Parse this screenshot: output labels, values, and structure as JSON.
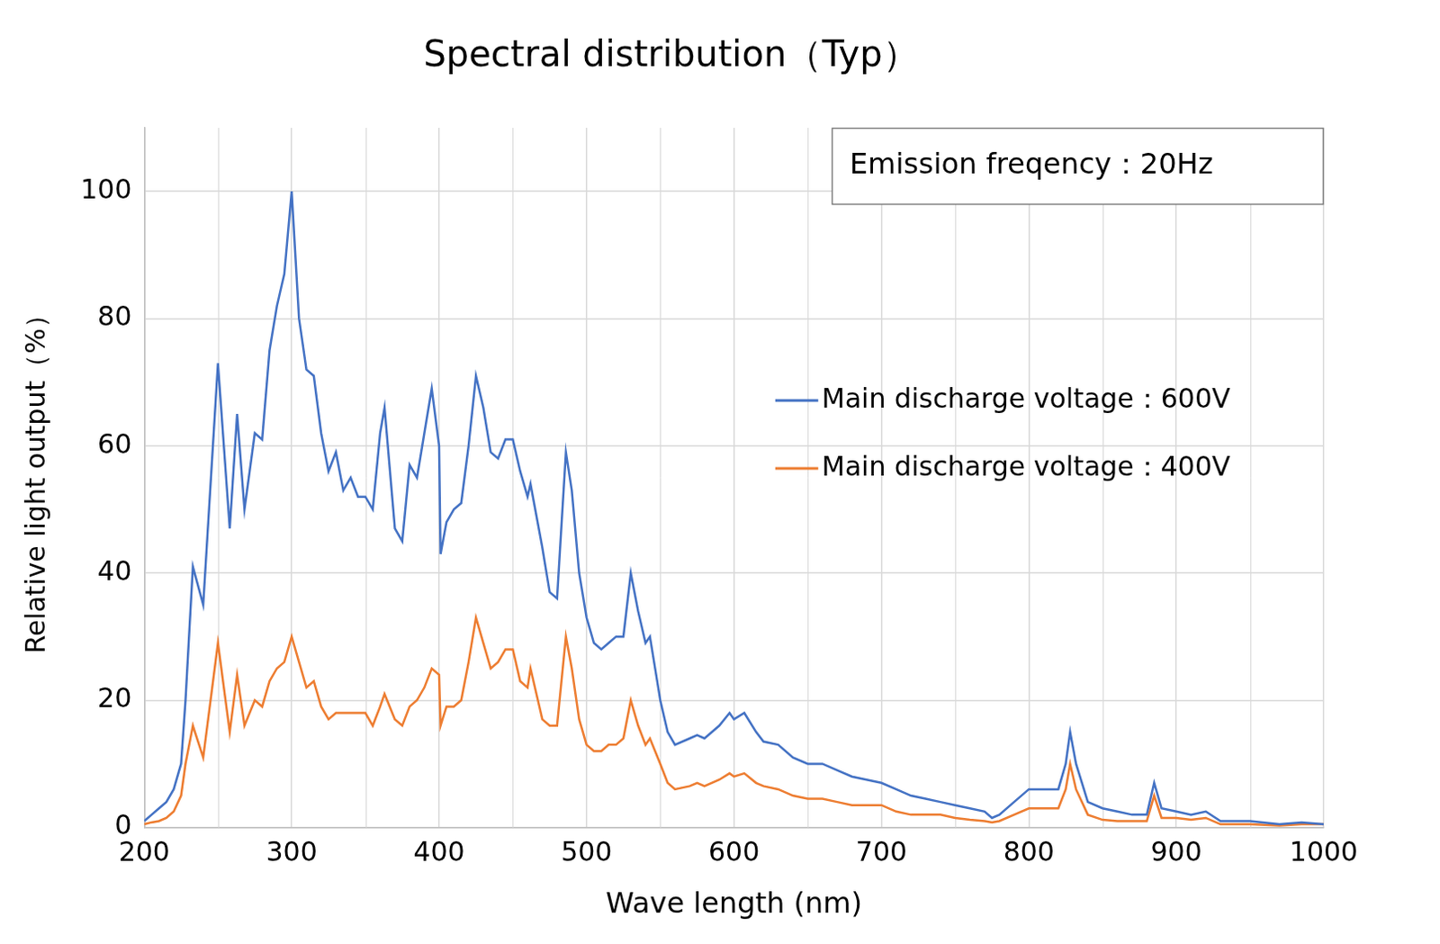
{
  "chart_data": {
    "type": "line",
    "title": "Spectral distribution（Typ）",
    "annotation": "Emission freqency：20Hz",
    "x_label": "Wave length (nm)",
    "y_label": "Relative light output（%）",
    "x": [
      200,
      205,
      210,
      215,
      220,
      225,
      228,
      233,
      240,
      250,
      258,
      263,
      268,
      275,
      280,
      285,
      290,
      295,
      300,
      305,
      310,
      315,
      320,
      325,
      330,
      335,
      340,
      345,
      350,
      355,
      360,
      363,
      370,
      375,
      380,
      385,
      390,
      395,
      400,
      401,
      405,
      410,
      415,
      420,
      425,
      430,
      435,
      440,
      445,
      450,
      455,
      460,
      462,
      470,
      475,
      480,
      486,
      490,
      495,
      500,
      505,
      510,
      515,
      520,
      525,
      530,
      535,
      540,
      543,
      550,
      555,
      560,
      570,
      575,
      580,
      590,
      597,
      600,
      607,
      615,
      620,
      630,
      640,
      650,
      660,
      670,
      680,
      690,
      700,
      710,
      720,
      730,
      740,
      750,
      760,
      770,
      775,
      780,
      790,
      800,
      810,
      820,
      825,
      828,
      832,
      840,
      850,
      860,
      870,
      880,
      885,
      890,
      900,
      910,
      920,
      930,
      950,
      970,
      985,
      1000
    ],
    "series": [
      {
        "name": "Main discharge voltage：600V",
        "color": "#4472c4",
        "values": [
          1,
          2,
          3,
          4,
          6,
          10,
          20,
          41,
          35,
          73,
          47,
          65,
          50,
          62,
          61,
          75,
          82,
          87,
          100,
          80,
          72,
          71,
          62,
          56,
          59,
          53,
          55,
          52,
          52,
          50,
          62,
          66,
          47,
          45,
          57,
          55,
          62,
          69,
          60,
          43,
          48,
          50,
          51,
          60,
          71,
          66,
          59,
          58,
          61,
          61,
          56,
          52,
          54,
          44,
          37,
          36,
          59,
          53,
          40,
          33,
          29,
          28,
          29,
          30,
          30,
          40,
          34,
          29,
          30,
          20,
          15,
          13,
          14,
          14.5,
          14,
          16,
          18,
          17,
          18,
          15,
          13.5,
          13,
          11,
          10,
          10,
          9,
          8,
          7.5,
          7,
          6,
          5,
          4.5,
          4,
          3.5,
          3,
          2.5,
          1.5,
          2,
          4,
          6,
          6,
          6,
          10,
          15,
          10,
          4,
          3,
          2.5,
          2,
          2,
          7,
          3,
          2.5,
          2,
          2.5,
          1,
          1,
          0.5,
          0.8,
          0.5
        ]
      },
      {
        "name": "Main discharge voltage：400V",
        "color": "#ed7d31",
        "values": [
          0.5,
          0.8,
          1,
          1.5,
          2.5,
          5,
          10,
          16,
          11,
          29,
          15,
          24,
          16,
          20,
          19,
          23,
          25,
          26,
          30,
          26,
          22,
          23,
          19,
          17,
          18,
          18,
          18,
          18,
          18,
          16,
          19,
          21,
          17,
          16,
          19,
          20,
          22,
          25,
          24,
          16,
          19,
          19,
          20,
          26,
          33,
          29,
          25,
          26,
          28,
          28,
          23,
          22,
          25,
          17,
          16,
          16,
          30,
          25,
          17,
          13,
          12,
          12,
          13,
          13,
          14,
          20,
          16,
          13,
          14,
          10,
          7,
          6,
          6.5,
          7,
          6.5,
          7.5,
          8.5,
          8,
          8.5,
          7,
          6.5,
          6,
          5,
          4.5,
          4.5,
          4,
          3.5,
          3.5,
          3.5,
          2.5,
          2,
          2,
          2,
          1.5,
          1.2,
          1,
          0.8,
          1,
          2,
          3,
          3,
          3,
          6,
          10,
          6,
          2,
          1.2,
          1,
          1,
          1,
          5,
          1.5,
          1.5,
          1.2,
          1.5,
          0.5,
          0.5,
          0.3,
          0.5,
          0.5
        ]
      }
    ],
    "xlim": [
      200,
      1000
    ],
    "xticks": [
      200,
      300,
      400,
      500,
      600,
      700,
      800,
      900,
      1000
    ],
    "ylim": [
      0,
      110
    ],
    "yticks": [
      0,
      20,
      40,
      60,
      80,
      100
    ],
    "grid": true,
    "legend": "right"
  }
}
